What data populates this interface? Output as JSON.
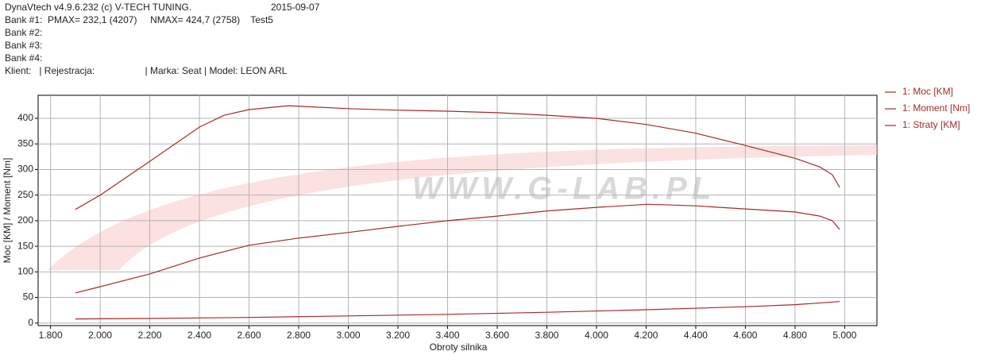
{
  "header": {
    "software": "DynaVtech v4.9.6.232 (c) V-TECH TUNING.",
    "date": "2015-09-07",
    "bank1": "Bank #1:  PMAX= 232,1 (4207)     NMAX= 424,7 (2758)    Test5",
    "bank2": "Bank #2:",
    "bank3": "Bank #3:",
    "bank4": "Bank #4:",
    "client": "Klient:   | Rejestracja:                   | Marka: Seat | Model: LEON ARL"
  },
  "chart_data": {
    "type": "line",
    "watermark": "WWW.G-LAB.PL",
    "x_label": "Obroty silnika",
    "y_label": "Moc [KM] / Moment [Nm]",
    "xlim": [
      1750,
      5130
    ],
    "ylim": [
      -5,
      445
    ],
    "xticks": [
      {
        "value": 1800,
        "label": "1.800"
      },
      {
        "value": 2000,
        "label": "2.000"
      },
      {
        "value": 2200,
        "label": "2.200"
      },
      {
        "value": 2400,
        "label": "2.400"
      },
      {
        "value": 2600,
        "label": "2.600"
      },
      {
        "value": 2800,
        "label": "2.800"
      },
      {
        "value": 3000,
        "label": "3.000"
      },
      {
        "value": 3200,
        "label": "3.200"
      },
      {
        "value": 3400,
        "label": "3.400"
      },
      {
        "value": 3600,
        "label": "3.600"
      },
      {
        "value": 3800,
        "label": "3.800"
      },
      {
        "value": 4000,
        "label": "4.000"
      },
      {
        "value": 4200,
        "label": "4.200"
      },
      {
        "value": 4400,
        "label": "4.400"
      },
      {
        "value": 4600,
        "label": "4.600"
      },
      {
        "value": 4800,
        "label": "4.800"
      },
      {
        "value": 5000,
        "label": "5.000"
      }
    ],
    "yticks": [
      0,
      50,
      100,
      150,
      200,
      250,
      300,
      350,
      400
    ],
    "grid": true,
    "legend": "right",
    "series": [
      {
        "name": "1: Moc [KM]",
        "color": "#a52a2a",
        "x": [
          1900,
          2000,
          2200,
          2400,
          2600,
          2800,
          3000,
          3200,
          3400,
          3600,
          3800,
          4000,
          4207,
          4400,
          4600,
          4800,
          4900,
          4950,
          4980
        ],
        "values": [
          59,
          71,
          96,
          127,
          152,
          166,
          177,
          189,
          200,
          209,
          219,
          226,
          232.1,
          229,
          223,
          217,
          209,
          200,
          183
        ]
      },
      {
        "name": "1: Moment [Nm]",
        "color": "#a52a2a",
        "x": [
          1900,
          2000,
          2200,
          2400,
          2500,
          2600,
          2758,
          3000,
          3200,
          3400,
          3600,
          3800,
          4000,
          4200,
          4400,
          4600,
          4800,
          4900,
          4950,
          4980
        ],
        "values": [
          222,
          250,
          316,
          383,
          406,
          417,
          424.7,
          419,
          416,
          414,
          411,
          406,
          400,
          388,
          371,
          347,
          322,
          305,
          290,
          265
        ]
      },
      {
        "name": "1: Straty [KM]",
        "color": "#a52a2a",
        "x": [
          1900,
          2200,
          2600,
          3000,
          3400,
          3800,
          4200,
          4600,
          4800,
          4980
        ],
        "values": [
          8,
          9,
          11,
          14,
          17,
          21,
          26,
          32,
          36,
          42
        ]
      }
    ]
  }
}
